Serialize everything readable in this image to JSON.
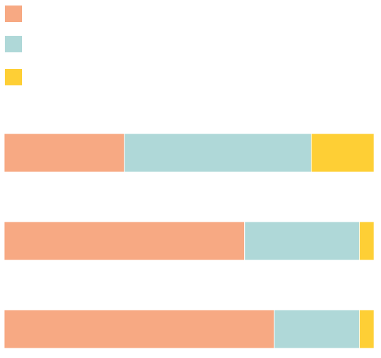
{
  "chart_data": {
    "type": "stacked-bar-horizontal",
    "categories": [
      null,
      null,
      null
    ],
    "series": [
      {
        "color": "#f7a983",
        "values": [
          32.5,
          65,
          73
        ]
      },
      {
        "color": "#afd8d8",
        "values": [
          50.5,
          31,
          23
        ]
      },
      {
        "color": "#fecf35",
        "values": [
          17,
          4,
          4
        ]
      }
    ],
    "xlim": [
      0,
      100
    ]
  }
}
